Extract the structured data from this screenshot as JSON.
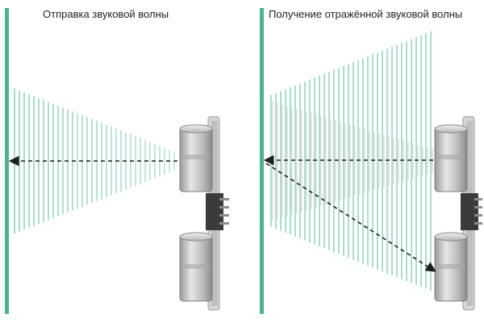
{
  "panels": [
    {
      "title": "Отправка звуковой волны"
    },
    {
      "title": "Получение отражённой звуковой волны"
    }
  ],
  "colors": {
    "wall": "#4db38c",
    "wave": "#5bbf98",
    "wave_fade": "#b9b9b9",
    "sensor_metal": "#c9c9c9",
    "sensor_dark": "#4a4a4a",
    "arrow": "#1f1f1f"
  },
  "icons": [
    "wall-line",
    "ultrasonic-sensor-icon",
    "wave-lines",
    "dashed-arrow"
  ]
}
